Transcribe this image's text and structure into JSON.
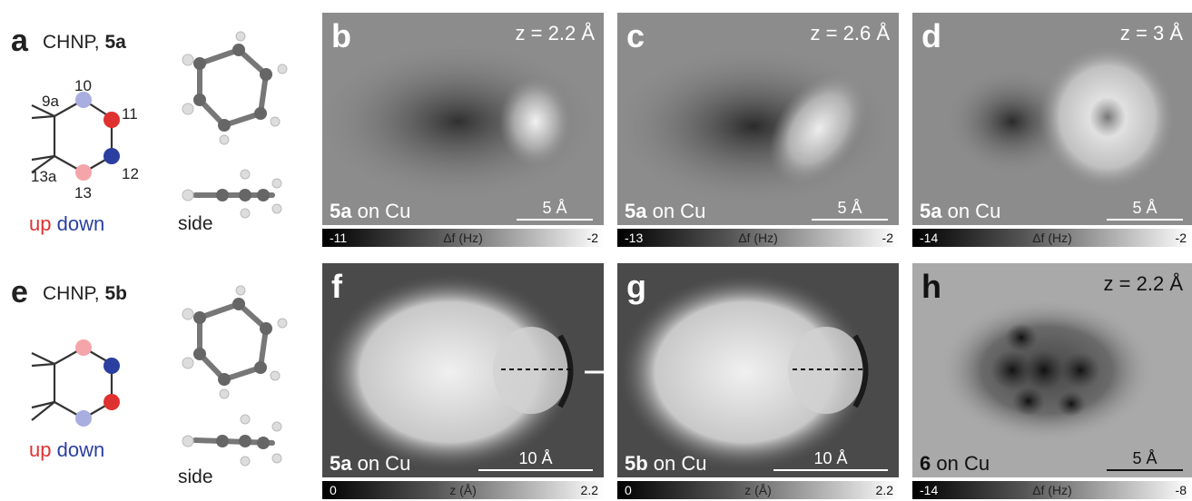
{
  "panel_a": {
    "letter": "a",
    "title": "CHNP,",
    "compound": "5a",
    "atom_labels": [
      "10",
      "9a",
      "11",
      "12",
      "13a",
      "13"
    ],
    "legend_up": "up",
    "legend_down": "down",
    "side_label": "side"
  },
  "panel_e": {
    "letter": "e",
    "title": "CHNP,",
    "compound": "5b",
    "legend_up": "up",
    "legend_down": "down",
    "side_label": "side"
  },
  "tiles": {
    "b": {
      "letter": "b",
      "z": "z = 2.2 Å",
      "caption_bold": "5a",
      "caption": " on Cu",
      "scale": "5 Å",
      "cbar": {
        "lo": "-11",
        "mid": "Δf (Hz)",
        "hi": "-2"
      }
    },
    "c": {
      "letter": "c",
      "z": "z = 2.6 Å",
      "caption_bold": "5a",
      "caption": " on Cu",
      "scale": "5 Å",
      "cbar": {
        "lo": "-13",
        "mid": "Δf (Hz)",
        "hi": "-2"
      }
    },
    "d": {
      "letter": "d",
      "z": "z = 3 Å",
      "caption_bold": "5a",
      "caption": " on Cu",
      "scale": "5 Å",
      "cbar": {
        "lo": "-14",
        "mid": "Δf (Hz)",
        "hi": "-2"
      }
    },
    "f": {
      "letter": "f",
      "caption_bold": "5a",
      "caption": " on Cu",
      "scale": "10 Å",
      "cbar": {
        "lo": "0",
        "mid": "z (Å)",
        "hi": "2.2"
      }
    },
    "g": {
      "letter": "g",
      "caption_bold": "5b",
      "caption": " on Cu",
      "scale": "10 Å",
      "cbar": {
        "lo": "0",
        "mid": "z (Å)",
        "hi": "2.2"
      }
    },
    "h": {
      "letter": "h",
      "z": "z = 2.2 Å",
      "caption_bold": "6",
      "caption": " on Cu",
      "scale": "5 Å",
      "cbar": {
        "lo": "-14",
        "mid": "Δf (Hz)",
        "hi": "-8"
      }
    }
  },
  "colors": {
    "up": "#e03131",
    "down": "#2b3fa0",
    "up_light": "#f4a5aa",
    "down_light": "#a9aee0"
  }
}
